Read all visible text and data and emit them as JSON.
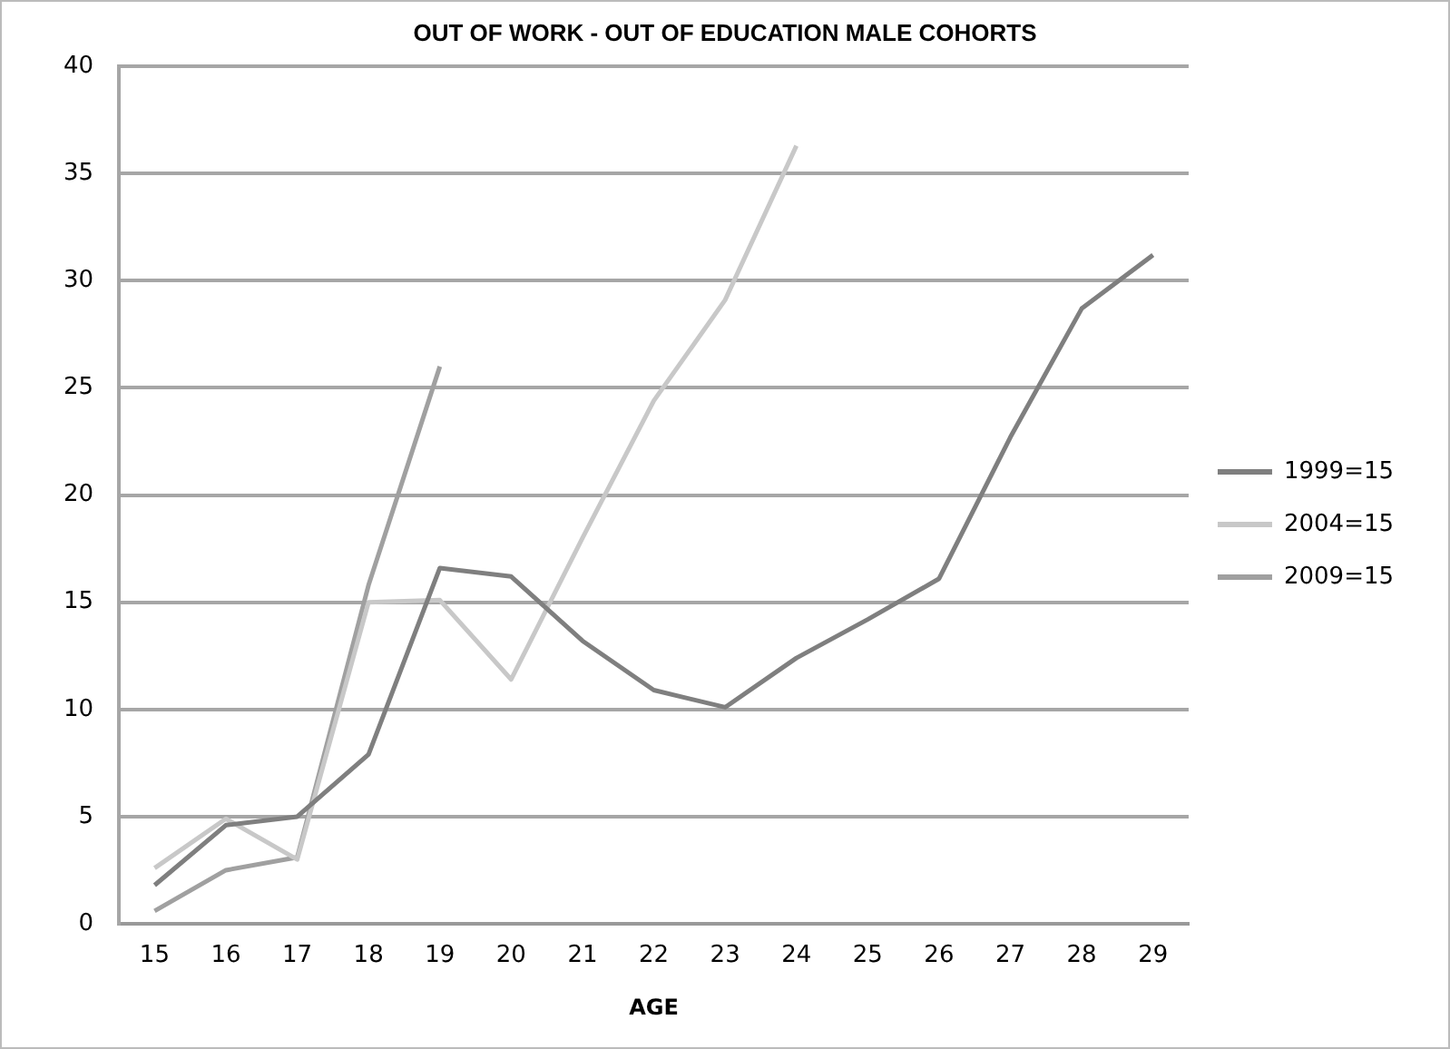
{
  "chart_data": {
    "type": "line",
    "title": "OUT OF WORK - OUT OF EDUCATION MALE COHORTS",
    "xlabel": "AGE",
    "categories": [
      "15",
      "16",
      "17",
      "18",
      "19",
      "20",
      "21",
      "22",
      "23",
      "24",
      "25",
      "26",
      "27",
      "28",
      "29"
    ],
    "series": [
      {
        "name": "1999=15",
        "color": "#7f7f7f",
        "values": [
          1.8,
          4.6,
          5.0,
          7.9,
          16.6,
          16.2,
          13.2,
          10.9,
          10.1,
          12.4,
          14.2,
          16.1,
          22.7,
          28.7,
          31.2
        ]
      },
      {
        "name": "2004=15",
        "color": "#c8c8c8",
        "values": [
          2.6,
          4.9,
          3.0,
          15.0,
          15.1,
          11.4,
          18.0,
          24.4,
          29.1,
          36.3,
          null,
          null,
          null,
          null,
          null
        ]
      },
      {
        "name": "2009=15",
        "color": "#a0a0a0",
        "values": [
          0.6,
          2.5,
          3.1,
          15.8,
          26.0,
          null,
          null,
          null,
          null,
          null,
          null,
          null,
          null,
          null,
          null
        ]
      }
    ],
    "ylim": [
      0,
      40
    ],
    "yticks": [
      0,
      5,
      10,
      15,
      20,
      25,
      30,
      35,
      40
    ],
    "grid": "y",
    "legend": "right",
    "marker": "none",
    "line_style": "solid"
  }
}
